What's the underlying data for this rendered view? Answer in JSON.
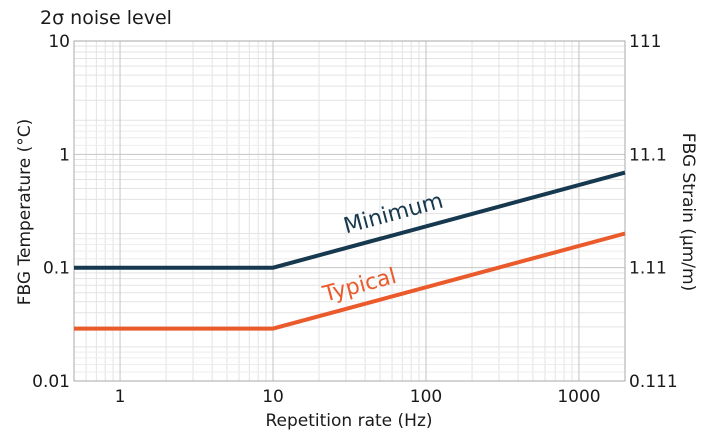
{
  "chart_data": {
    "type": "line",
    "title": "2σ noise level",
    "xlabel": "Repetition rate (Hz)",
    "ylabel": "FBG Temperature (°C)",
    "y2label": "FBG Strain (µm/m)",
    "x_scale": "log",
    "y_scale": "log",
    "xlim": [
      0.5,
      2000
    ],
    "ylim": [
      0.01,
      10
    ],
    "x_ticks": [
      {
        "value": 1,
        "label": "1"
      },
      {
        "value": 10,
        "label": "10"
      },
      {
        "value": 100,
        "label": "100"
      },
      {
        "value": 1000,
        "label": "1000"
      }
    ],
    "y_ticks": [
      {
        "value": 0.01,
        "label": "0.01"
      },
      {
        "value": 0.1,
        "label": "0.1"
      },
      {
        "value": 1,
        "label": "1"
      },
      {
        "value": 10,
        "label": "10"
      }
    ],
    "y2_ticks": [
      {
        "value": 0.01,
        "label": "0.111"
      },
      {
        "value": 0.1,
        "label": "1.11"
      },
      {
        "value": 1,
        "label": "11.1"
      },
      {
        "value": 10,
        "label": "111"
      }
    ],
    "grid": true,
    "series": [
      {
        "name": "Minimum",
        "color": "#17394f",
        "points": [
          [
            0.5,
            0.1
          ],
          [
            10,
            0.1
          ],
          [
            2000,
            0.69
          ]
        ],
        "label_at": [
          30,
          0.2
        ]
      },
      {
        "name": "Typical",
        "color": "#ea5a2b",
        "points": [
          [
            0.5,
            0.029
          ],
          [
            10,
            0.029
          ],
          [
            2000,
            0.2
          ]
        ],
        "label_at": [
          22,
          0.05
        ]
      }
    ]
  }
}
